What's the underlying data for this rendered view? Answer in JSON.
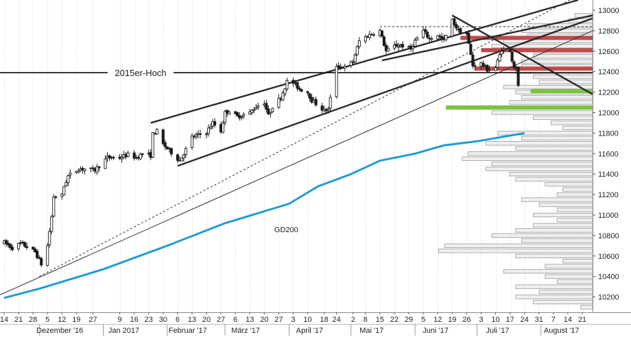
{
  "chart_data": {
    "type": "candlestick",
    "title": "",
    "xlabel": "",
    "ylabel": "",
    "y_axis": {
      "position": "right",
      "ylim": [
        10050,
        13100
      ],
      "ticks": [
        10200,
        10400,
        10600,
        10800,
        11000,
        11200,
        11400,
        11600,
        11800,
        12000,
        12200,
        12400,
        12600,
        12800,
        13000
      ],
      "tick_labels": [
        "10200",
        "10400",
        "10600",
        "10800",
        "11000",
        "11200",
        "11400",
        "11600",
        "11800",
        "12000",
        "12200",
        "12400",
        "12600",
        "12800",
        "13000"
      ]
    },
    "x_axis": {
      "start": "2016-11-12",
      "end": "2017-08-26",
      "day_ticks": [
        {
          "date": "2016-11-14",
          "label": "14"
        },
        {
          "date": "2016-11-21",
          "label": "21"
        },
        {
          "date": "2016-11-28",
          "label": "28"
        },
        {
          "date": "2016-12-05",
          "label": "5"
        },
        {
          "date": "2016-12-12",
          "label": "12"
        },
        {
          "date": "2016-12-19",
          "label": "19"
        },
        {
          "date": "2016-12-27",
          "label": "27"
        },
        {
          "date": "2017-01-09",
          "label": "9"
        },
        {
          "date": "2017-01-16",
          "label": "16"
        },
        {
          "date": "2017-01-23",
          "label": "23"
        },
        {
          "date": "2017-01-30",
          "label": "30"
        },
        {
          "date": "2017-02-06",
          "label": "6"
        },
        {
          "date": "2017-02-13",
          "label": "13"
        },
        {
          "date": "2017-02-20",
          "label": "20"
        },
        {
          "date": "2017-02-27",
          "label": "27"
        },
        {
          "date": "2017-03-06",
          "label": "6"
        },
        {
          "date": "2017-03-13",
          "label": "13"
        },
        {
          "date": "2017-03-20",
          "label": "20"
        },
        {
          "date": "2017-03-27",
          "label": "27"
        },
        {
          "date": "2017-04-03",
          "label": "3"
        },
        {
          "date": "2017-04-10",
          "label": "10"
        },
        {
          "date": "2017-04-18",
          "label": "18"
        },
        {
          "date": "2017-04-24",
          "label": "24"
        },
        {
          "date": "2017-05-02",
          "label": "2"
        },
        {
          "date": "2017-05-08",
          "label": "8"
        },
        {
          "date": "2017-05-15",
          "label": "15"
        },
        {
          "date": "2017-05-22",
          "label": "22"
        },
        {
          "date": "2017-05-29",
          "label": "29"
        },
        {
          "date": "2017-06-05",
          "label": "5"
        },
        {
          "date": "2017-06-12",
          "label": "12"
        },
        {
          "date": "2017-06-19",
          "label": "19"
        },
        {
          "date": "2017-06-26",
          "label": "26"
        },
        {
          "date": "2017-07-03",
          "label": "3"
        },
        {
          "date": "2017-07-10",
          "label": "10"
        },
        {
          "date": "2017-07-17",
          "label": "17"
        },
        {
          "date": "2017-07-24",
          "label": "24"
        },
        {
          "date": "2017-07-31",
          "label": "31"
        },
        {
          "date": "2017-08-07",
          "label": "7"
        },
        {
          "date": "2017-08-14",
          "label": "14"
        },
        {
          "date": "2017-08-21",
          "label": "21"
        }
      ],
      "month_labels": [
        {
          "date": "2016-12-01",
          "label": "Dezember '16"
        },
        {
          "date": "2017-01-01",
          "label": "Jan 2017"
        },
        {
          "date": "2017-02-01",
          "label": "Februar '17"
        },
        {
          "date": "2017-03-01",
          "label": "März '17"
        },
        {
          "date": "2017-04-01",
          "label": "April '17"
        },
        {
          "date": "2017-05-01",
          "label": "Mai '17"
        },
        {
          "date": "2017-06-01",
          "label": "Juni '17"
        },
        {
          "date": "2017-07-01",
          "label": "Juli '17"
        },
        {
          "date": "2017-08-01",
          "label": "August '17"
        }
      ]
    },
    "grid": true,
    "price_path": [
      [
        "2016-11-14",
        10730
      ],
      [
        "2016-11-18",
        10680
      ],
      [
        "2016-11-22",
        10720
      ],
      [
        "2016-11-25",
        10690
      ],
      [
        "2016-11-29",
        10640
      ],
      [
        "2016-12-01",
        10560
      ],
      [
        "2016-12-02",
        10520
      ],
      [
        "2016-12-05",
        10700
      ],
      [
        "2016-12-07",
        10980
      ],
      [
        "2016-12-08",
        11180
      ],
      [
        "2016-12-12",
        11190
      ],
      [
        "2016-12-13",
        11280
      ],
      [
        "2016-12-15",
        11380
      ],
      [
        "2016-12-20",
        11450
      ],
      [
        "2016-12-23",
        11450
      ],
      [
        "2016-12-28",
        11440
      ],
      [
        "2017-01-03",
        11560
      ],
      [
        "2017-01-09",
        11560
      ],
      [
        "2017-01-13",
        11590
      ],
      [
        "2017-01-17",
        11560
      ],
      [
        "2017-01-20",
        11600
      ],
      [
        "2017-01-24",
        11580
      ],
      [
        "2017-01-25",
        11790
      ],
      [
        "2017-01-27",
        11820
      ],
      [
        "2017-01-30",
        11690
      ],
      [
        "2017-02-01",
        11650
      ],
      [
        "2017-02-06",
        11550
      ],
      [
        "2017-02-07",
        11530
      ],
      [
        "2017-02-10",
        11640
      ],
      [
        "2017-02-13",
        11760
      ],
      [
        "2017-02-16",
        11780
      ],
      [
        "2017-02-20",
        11810
      ],
      [
        "2017-02-23",
        11900
      ],
      [
        "2017-02-27",
        11820
      ],
      [
        "2017-03-01",
        12000
      ],
      [
        "2017-03-03",
        12020
      ],
      [
        "2017-03-07",
        11960
      ],
      [
        "2017-03-13",
        12000
      ],
      [
        "2017-03-16",
        12060
      ],
      [
        "2017-03-20",
        12100
      ],
      [
        "2017-03-22",
        11970
      ],
      [
        "2017-03-24",
        12060
      ],
      [
        "2017-03-28",
        12150
      ],
      [
        "2017-03-31",
        12300
      ],
      [
        "2017-04-03",
        12290
      ],
      [
        "2017-04-06",
        12230
      ],
      [
        "2017-04-10",
        12200
      ],
      [
        "2017-04-12",
        12120
      ],
      [
        "2017-04-18",
        12020
      ],
      [
        "2017-04-20",
        12030
      ],
      [
        "2017-04-24",
        12460
      ],
      [
        "2017-04-28",
        12440
      ],
      [
        "2017-05-02",
        12500
      ],
      [
        "2017-05-05",
        12700
      ],
      [
        "2017-05-09",
        12750
      ],
      [
        "2017-05-12",
        12780
      ],
      [
        "2017-05-15",
        12800
      ],
      [
        "2017-05-18",
        12600
      ],
      [
        "2017-05-22",
        12650
      ],
      [
        "2017-05-25",
        12660
      ],
      [
        "2017-05-30",
        12620
      ],
      [
        "2017-06-01",
        12700
      ],
      [
        "2017-06-05",
        12800
      ],
      [
        "2017-06-08",
        12720
      ],
      [
        "2017-06-12",
        12760
      ],
      [
        "2017-06-15",
        12700
      ],
      [
        "2017-06-19",
        12900
      ],
      [
        "2017-06-22",
        12800
      ],
      [
        "2017-06-26",
        12770
      ],
      [
        "2017-06-29",
        12460
      ],
      [
        "2017-07-03",
        12480
      ],
      [
        "2017-07-06",
        12420
      ],
      [
        "2017-07-10",
        12440
      ],
      [
        "2017-07-13",
        12620
      ],
      [
        "2017-07-17",
        12590
      ],
      [
        "2017-07-19",
        12450
      ],
      [
        "2017-07-20",
        12450
      ],
      [
        "2017-07-21",
        12250
      ]
    ],
    "gd200": {
      "name": "GD200",
      "color": "#1f9bd7",
      "points": [
        [
          "2016-11-14",
          10190
        ],
        [
          "2016-12-01",
          10280
        ],
        [
          "2017-01-01",
          10470
        ],
        [
          "2017-02-01",
          10700
        ],
        [
          "2017-03-01",
          10920
        ],
        [
          "2017-04-01",
          11110
        ],
        [
          "2017-04-15",
          11280
        ],
        [
          "2017-05-01",
          11400
        ],
        [
          "2017-05-15",
          11530
        ],
        [
          "2017-06-01",
          11600
        ],
        [
          "2017-06-15",
          11680
        ],
        [
          "2017-07-01",
          11720
        ],
        [
          "2017-07-24",
          11800
        ]
      ]
    },
    "horizontal_line": {
      "label": "2015er-Hoch",
      "y": 12390
    },
    "resistance_zones": [
      {
        "from": "2017-06-23",
        "to": "2017-08-26",
        "y": 12730,
        "color": "#c04a4a"
      },
      {
        "from": "2017-07-03",
        "to": "2017-08-26",
        "y": 12610,
        "color": "#c04a4a"
      },
      {
        "from": "2017-06-30",
        "to": "2017-08-26",
        "y": 12430,
        "color": "#c04a4a"
      }
    ],
    "support_zones": [
      {
        "from": "2017-07-27",
        "to": "2017-08-26",
        "y": 12210,
        "color": "#7dc242"
      },
      {
        "from": "2017-06-16",
        "to": "2017-08-26",
        "y": 12050,
        "color": "#7dc242"
      }
    ],
    "trendlines": [
      {
        "style": "thick",
        "from": [
          "2017-01-24",
          11900
        ],
        "to": [
          "2017-08-19",
          13100
        ]
      },
      {
        "style": "thick",
        "from": [
          "2017-02-06",
          11480
        ],
        "to": [
          "2017-08-26",
          12920
        ]
      },
      {
        "style": "thick",
        "from": [
          "2017-05-16",
          12510
        ],
        "to": [
          "2017-08-26",
          12950
        ]
      },
      {
        "style": "thick",
        "from": [
          "2017-06-19",
          12950
        ],
        "to": [
          "2017-08-26",
          12180
        ]
      },
      {
        "style": "thin",
        "from": [
          "2016-11-12",
          10220
        ],
        "to": [
          "2017-08-26",
          12800
        ]
      },
      {
        "style": "dashed",
        "from": [
          "2016-12-01",
          10400
        ],
        "to": [
          "2017-08-15",
          13100
        ]
      },
      {
        "style": "dashed",
        "from": [
          "2017-05-15",
          12840
        ],
        "to": [
          "2017-08-26",
          12840
        ]
      }
    ],
    "volume_profile": {
      "color": "#d8d8d8",
      "bins": [
        [
          10100,
          0.02
        ],
        [
          10150,
          0.1
        ],
        [
          10200,
          0.13
        ],
        [
          10250,
          0.09
        ],
        [
          10300,
          0.13
        ],
        [
          10350,
          0.06
        ],
        [
          10400,
          0.08
        ],
        [
          10450,
          0.15
        ],
        [
          10500,
          0.08
        ],
        [
          10550,
          0.05
        ],
        [
          10600,
          0.13
        ],
        [
          10650,
          0.26
        ],
        [
          10700,
          0.25
        ],
        [
          10750,
          0.12
        ],
        [
          10800,
          0.17
        ],
        [
          10850,
          0.13
        ],
        [
          10900,
          0.1
        ],
        [
          10950,
          0.06
        ],
        [
          11000,
          0.1
        ],
        [
          11050,
          0.06
        ],
        [
          11100,
          0.09
        ],
        [
          11150,
          0.12
        ],
        [
          11200,
          0.06
        ],
        [
          11250,
          0.05
        ],
        [
          11300,
          0.08
        ],
        [
          11350,
          0.13
        ],
        [
          11400,
          0.14
        ],
        [
          11450,
          0.18
        ],
        [
          11500,
          0.17
        ],
        [
          11550,
          0.22
        ],
        [
          11600,
          0.21
        ],
        [
          11650,
          0.13
        ],
        [
          11700,
          0.18
        ],
        [
          11750,
          0.12
        ],
        [
          11800,
          0.16
        ],
        [
          11850,
          0.05
        ],
        [
          11900,
          0.07
        ],
        [
          11950,
          0.1
        ],
        [
          12000,
          0.17
        ],
        [
          12050,
          0.21
        ],
        [
          12100,
          0.14
        ],
        [
          12150,
          0.12
        ],
        [
          12200,
          0.13
        ],
        [
          12250,
          0.15
        ],
        [
          12300,
          0.09
        ],
        [
          12350,
          0.1
        ],
        [
          12400,
          0.13
        ],
        [
          12450,
          0.12
        ],
        [
          12500,
          0.12
        ],
        [
          12550,
          0.1
        ],
        [
          12600,
          0.1
        ],
        [
          12650,
          0.17
        ],
        [
          12700,
          0.15
        ],
        [
          12750,
          0.11
        ],
        [
          12800,
          0.12
        ],
        [
          12850,
          0.11
        ],
        [
          12900,
          0.04
        ],
        [
          12950,
          0.03
        ]
      ]
    },
    "annotations": [
      {
        "text": "2015er-Hoch",
        "role": "horizontal-line-label"
      },
      {
        "text": "GD200",
        "role": "moving-average-label"
      }
    ]
  }
}
